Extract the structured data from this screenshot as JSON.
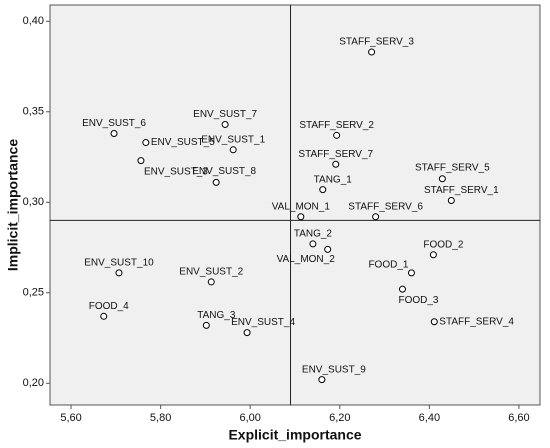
{
  "chart_data": {
    "type": "scatter",
    "x_label": "Explicit_importance",
    "y_label": "Implicit_importance",
    "labels": [
      "STAFF_SERV_3",
      "ENV_SUST_7",
      "ENV_SUST_6",
      "STAFF_SERV_2",
      "ENV_SUST_5",
      "ENV_SUST_1",
      "ENV_SUST_3",
      "STAFF_SERV_7",
      "ENV_SUST_8",
      "TANG_1",
      "STAFF_SERV_5",
      "STAFF_SERV_1",
      "VAL_MON_1",
      "STAFF_SERV_6",
      "TANG_2",
      "VAL_MON_2",
      "FOOD_2",
      "FOOD_1",
      "ENV_SUST_10",
      "ENV_SUST_2",
      "FOOD_3",
      "FOOD_4",
      "TANG_3",
      "STAFF_SERV_4",
      "ENV_SUST_4",
      "ENV_SUST_9"
    ],
    "x": [
      6.271,
      5.944,
      5.696,
      6.193,
      5.767,
      5.962,
      5.756,
      6.191,
      5.924,
      6.162,
      6.429,
      6.449,
      6.113,
      6.28,
      6.14,
      6.173,
      6.409,
      6.36,
      5.707,
      5.913,
      6.34,
      5.673,
      5.902,
      6.411,
      5.993,
      6.16
    ],
    "y": [
      0.383,
      0.343,
      0.338,
      0.337,
      0.333,
      0.329,
      0.323,
      0.321,
      0.311,
      0.307,
      0.313,
      0.301,
      0.292,
      0.292,
      0.277,
      0.274,
      0.271,
      0.261,
      0.261,
      0.256,
      0.252,
      0.237,
      0.232,
      0.234,
      0.228,
      0.202
    ],
    "xlim": [
      5.553,
      6.647
    ],
    "ylim": [
      0.188,
      0.409
    ],
    "xticks": [
      {
        "value": 5.6,
        "label": "5,60"
      },
      {
        "value": 5.8,
        "label": "5,80"
      },
      {
        "value": 6.0,
        "label": "6,00"
      },
      {
        "value": 6.2,
        "label": "6,20"
      },
      {
        "value": 6.4,
        "label": "6,40"
      },
      {
        "value": 6.6,
        "label": "6,60"
      }
    ],
    "yticks": [
      {
        "value": 0.2,
        "label": "0,20"
      },
      {
        "value": 0.25,
        "label": "0,25"
      },
      {
        "value": 0.3,
        "label": "0,30"
      },
      {
        "value": 0.35,
        "label": "0,35"
      },
      {
        "value": 0.4,
        "label": "0,40"
      }
    ],
    "reference_lines": {
      "x": 6.09,
      "y": 0.29
    },
    "marker_color": "#000000",
    "plot_background": "#f0f0f0"
  }
}
